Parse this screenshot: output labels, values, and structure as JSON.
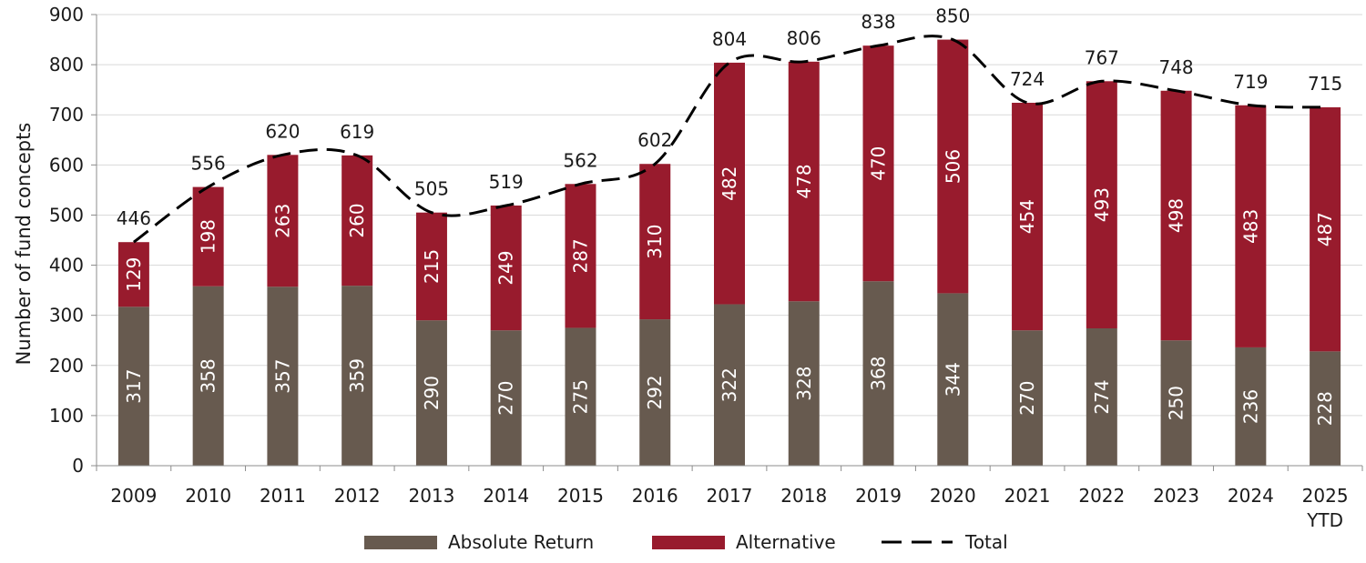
{
  "chart_data": {
    "type": "bar",
    "stacked": true,
    "title": "",
    "xlabel": "",
    "ylabel": "Number of fund concepts",
    "ylim": [
      0,
      900
    ],
    "yticks": [
      0,
      100,
      200,
      300,
      400,
      500,
      600,
      700,
      800,
      900
    ],
    "grid": true,
    "legend_position": "bottom",
    "categories": [
      "2009",
      "2010",
      "2011",
      "2012",
      "2013",
      "2014",
      "2015",
      "2016",
      "2017",
      "2018",
      "2019",
      "2020",
      "2021",
      "2022",
      "2023",
      "2024",
      "2025 YTD"
    ],
    "category_lines": [
      [
        "2009"
      ],
      [
        "2010"
      ],
      [
        "2011"
      ],
      [
        "2012"
      ],
      [
        "2013"
      ],
      [
        "2014"
      ],
      [
        "2015"
      ],
      [
        "2016"
      ],
      [
        "2017"
      ],
      [
        "2018"
      ],
      [
        "2019"
      ],
      [
        "2020"
      ],
      [
        "2021"
      ],
      [
        "2022"
      ],
      [
        "2023"
      ],
      [
        "2024"
      ],
      [
        "2025",
        "YTD"
      ]
    ],
    "series": [
      {
        "name": "Absolute Return",
        "color": "#675a4f",
        "values": [
          317,
          358,
          357,
          359,
          290,
          270,
          275,
          292,
          322,
          328,
          368,
          344,
          270,
          274,
          250,
          236,
          228
        ]
      },
      {
        "name": "Alternative",
        "color": "#981b2d",
        "values": [
          129,
          198,
          263,
          260,
          215,
          249,
          287,
          310,
          482,
          478,
          470,
          506,
          454,
          493,
          498,
          483,
          487
        ]
      }
    ],
    "total": {
      "name": "Total",
      "style": "dashed",
      "color": "#000000",
      "values": [
        446,
        556,
        620,
        619,
        505,
        519,
        562,
        602,
        804,
        806,
        838,
        850,
        724,
        767,
        748,
        719,
        715
      ]
    }
  }
}
